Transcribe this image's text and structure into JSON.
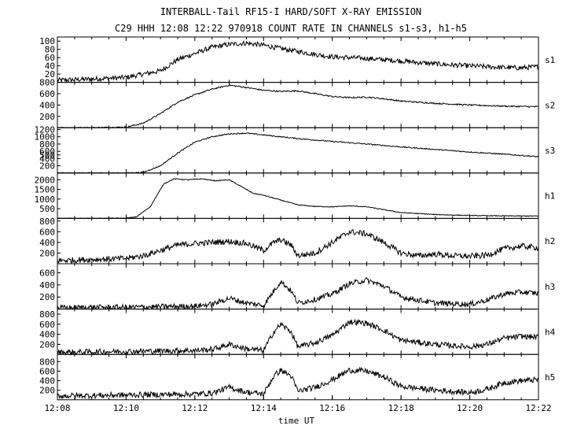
{
  "figure": {
    "title_line1": "INTERBALL-Tail RF15-I HARD/SOFT X-RAY EMISSION",
    "title_line2": "C29 HHH 12:08 12:22 970918  COUNT RATE IN CHANNELS s1-s3, h1-h5"
  },
  "chart_data": {
    "type": "line",
    "title": "INTERBALL-Tail RF15-I HARD/SOFT X-RAY EMISSION",
    "subtitle": "C29 HHH 12:08 12:22 970918  COUNT RATE IN CHANNELS s1-s3, h1-h5",
    "xlabel": "time UT",
    "xlim": [
      0,
      14
    ],
    "x_tick_values": [
      0,
      2,
      4,
      6,
      8,
      10,
      12,
      14
    ],
    "x_tick_labels": [
      "12:08",
      "12:10",
      "12:12",
      "12:14",
      "12:16",
      "12:18",
      "12:20",
      "12:22"
    ],
    "grid": false,
    "panels": [
      {
        "name": "s1",
        "ylim": [
          0,
          110
        ],
        "yticks": [
          20,
          40,
          60,
          80,
          100
        ],
        "x": [
          0,
          1,
          2,
          3,
          3.5,
          4,
          4.5,
          5,
          5.5,
          6,
          6.5,
          7,
          7.5,
          8,
          8.5,
          9,
          9.5,
          10,
          10.5,
          11,
          11.5,
          12,
          12.5,
          13,
          13.5,
          14
        ],
        "y": [
          5,
          8,
          12,
          28,
          55,
          70,
          85,
          92,
          95,
          90,
          82,
          75,
          68,
          62,
          60,
          58,
          55,
          52,
          48,
          45,
          42,
          40,
          38,
          36,
          35,
          38
        ],
        "noise": 6
      },
      {
        "name": "s2",
        "ylim": [
          0,
          800
        ],
        "yticks": [
          200,
          400,
          600,
          800
        ],
        "x": [
          0,
          1,
          2,
          2.5,
          3,
          3.5,
          4,
          4.5,
          5,
          5.5,
          6,
          6.5,
          7,
          7.5,
          8,
          8.5,
          9,
          9.5,
          10,
          10.5,
          11,
          12,
          13,
          14
        ],
        "y": [
          0,
          0,
          10,
          80,
          250,
          450,
          580,
          680,
          750,
          710,
          660,
          640,
          650,
          600,
          550,
          530,
          540,
          510,
          470,
          450,
          430,
          400,
          380,
          370
        ],
        "noise": 12
      },
      {
        "name": "s3",
        "ylim": [
          0,
          1250
        ],
        "yticks": [
          200,
          400,
          500,
          600,
          800,
          1000,
          1200
        ],
        "x": [
          0,
          1,
          2,
          2.5,
          3,
          3.5,
          4,
          4.5,
          5,
          5.5,
          6,
          7,
          8,
          9,
          10,
          11,
          12,
          13,
          14
        ],
        "y": [
          0,
          0,
          0,
          20,
          200,
          550,
          850,
          1000,
          1080,
          1100,
          1050,
          950,
          870,
          800,
          720,
          650,
          580,
          520,
          450
        ],
        "noise": 15
      },
      {
        "name": "h1",
        "ylim": [
          0,
          2350
        ],
        "yticks": [
          500,
          1000,
          1500,
          2000
        ],
        "x": [
          0,
          1,
          2,
          2.3,
          2.7,
          3.1,
          3.4,
          3.8,
          4.2,
          4.6,
          5,
          5.3,
          5.7,
          6,
          6.5,
          7,
          7.5,
          8,
          8.5,
          9,
          9.5,
          10,
          11,
          12,
          13,
          14
        ],
        "y": [
          0,
          0,
          10,
          80,
          600,
          1800,
          2050,
          2000,
          2050,
          1950,
          2000,
          1700,
          1300,
          1200,
          950,
          700,
          620,
          600,
          650,
          600,
          450,
          300,
          200,
          150,
          130,
          120
        ],
        "noise": 20
      },
      {
        "name": "h2",
        "ylim": [
          0,
          850
        ],
        "yticks": [
          200,
          400,
          600,
          800
        ],
        "x": [
          0,
          1,
          2,
          2.5,
          3,
          3.5,
          4,
          4.5,
          5,
          5.5,
          6,
          6.3,
          6.5,
          6.8,
          7,
          7.5,
          8,
          8.5,
          9,
          9.5,
          10,
          10.5,
          11,
          11.5,
          12,
          12.5,
          13,
          13.5,
          14
        ],
        "y": [
          60,
          80,
          100,
          150,
          250,
          350,
          380,
          400,
          420,
          380,
          250,
          400,
          450,
          350,
          150,
          200,
          400,
          600,
          560,
          400,
          200,
          150,
          180,
          150,
          140,
          160,
          280,
          330,
          300
        ],
        "noise": 55
      },
      {
        "name": "h3",
        "ylim": [
          0,
          750
        ],
        "yticks": [
          200,
          400,
          600
        ],
        "x": [
          0,
          1,
          2,
          3,
          4,
          4.5,
          5,
          5.5,
          6,
          6.3,
          6.5,
          6.8,
          7,
          7.5,
          8,
          8.5,
          9,
          9.5,
          10,
          11,
          12,
          12.5,
          13,
          13.5,
          14
        ],
        "y": [
          20,
          30,
          30,
          40,
          50,
          80,
          180,
          100,
          60,
          300,
          460,
          300,
          100,
          160,
          250,
          420,
          480,
          380,
          200,
          100,
          80,
          150,
          250,
          280,
          260
        ],
        "noise": 45
      },
      {
        "name": "h4",
        "ylim": [
          0,
          900
        ],
        "yticks": [
          200,
          400,
          600,
          800
        ],
        "x": [
          0,
          1,
          2,
          3,
          4,
          4.5,
          5,
          5.5,
          6,
          6.3,
          6.5,
          6.8,
          7,
          7.5,
          8,
          8.5,
          9,
          9.5,
          10,
          11,
          12,
          12.5,
          13,
          13.5,
          14
        ],
        "y": [
          40,
          50,
          60,
          70,
          80,
          100,
          200,
          110,
          80,
          450,
          600,
          450,
          150,
          230,
          380,
          650,
          620,
          480,
          280,
          200,
          150,
          200,
          320,
          360,
          340
        ],
        "noise": 55
      },
      {
        "name": "h5",
        "ylim": [
          0,
          950
        ],
        "yticks": [
          200,
          400,
          600,
          800
        ],
        "x": [
          0,
          1,
          2,
          3,
          4,
          4.5,
          5,
          5.5,
          6,
          6.3,
          6.5,
          6.8,
          7,
          7.5,
          8,
          8.5,
          9,
          9.5,
          10,
          11,
          12,
          12.5,
          13,
          13.5,
          14
        ],
        "y": [
          80,
          90,
          100,
          110,
          120,
          140,
          260,
          160,
          120,
          500,
          620,
          500,
          180,
          260,
          420,
          620,
          600,
          480,
          280,
          200,
          150,
          220,
          360,
          400,
          420
        ],
        "noise": 60
      }
    ]
  }
}
